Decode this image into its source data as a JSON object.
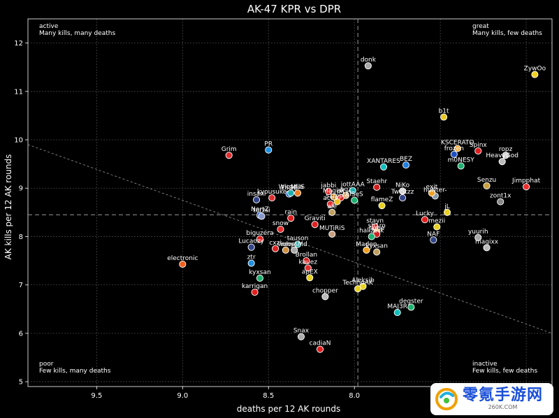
{
  "chart_data": {
    "type": "scatter",
    "title": "AK-47 KPR vs DPR",
    "xlabel": "deaths per 12 AK rounds",
    "ylabel": "AK kills per 12 AK rounds",
    "xlim": [
      9.9,
      6.85
    ],
    "ylim": [
      4.9,
      12.5
    ],
    "x_inverted": true,
    "x_ticks": [
      "9.5",
      "9.0",
      "8.5",
      "8.0",
      "7.5",
      "7.0"
    ],
    "x_tick_values": [
      9.5,
      9.0,
      8.5,
      8.0,
      7.5,
      7.0
    ],
    "y_ticks": [
      "5",
      "6",
      "7",
      "8",
      "9",
      "10",
      "11",
      "12"
    ],
    "y_tick_values": [
      5,
      6,
      7,
      8,
      9,
      10,
      11,
      12
    ],
    "grid": true,
    "mean_x": 7.98,
    "mean_y": 8.45,
    "trend_line": [
      [
        9.9,
        9.9
      ],
      [
        6.85,
        6.0
      ]
    ],
    "quadrants": {
      "top_left": {
        "title": "active",
        "subtitle": "Many kills, many deaths"
      },
      "top_right": {
        "title": "great",
        "subtitle": "Many kills, few deaths"
      },
      "bottom_left": {
        "title": "poor",
        "subtitle": "Few kills, many deaths"
      },
      "bottom_right": {
        "title": "inactive",
        "subtitle": "Few kills, few deaths"
      }
    },
    "points": [
      {
        "label": "donk",
        "x": 7.92,
        "y": 11.53,
        "color": "#aaaaaa"
      },
      {
        "label": "ZywOo",
        "x": 6.95,
        "y": 11.35,
        "color": "#f0d020"
      },
      {
        "label": "b1t",
        "x": 7.48,
        "y": 10.47,
        "color": "#e8c820"
      },
      {
        "label": "Grim",
        "x": 8.73,
        "y": 9.68,
        "color": "#e03030"
      },
      {
        "label": "PR",
        "x": 8.5,
        "y": 9.79,
        "color": "#2090e0"
      },
      {
        "label": "KSCERATO",
        "x": 7.4,
        "y": 9.82,
        "color": "#f0a020"
      },
      {
        "label": "Spinx",
        "x": 7.28,
        "y": 9.77,
        "color": "#e02020"
      },
      {
        "label": "frozen",
        "x": 7.42,
        "y": 9.7,
        "color": "#2050c0"
      },
      {
        "label": "ropz",
        "x": 7.12,
        "y": 9.68,
        "color": "#cccccc"
      },
      {
        "label": "HeavyGod",
        "x": 7.14,
        "y": 9.55,
        "color": "#bbbbbb"
      },
      {
        "label": "m0NESY",
        "x": 7.38,
        "y": 9.46,
        "color": "#20b070"
      },
      {
        "label": "XANTARES",
        "x": 7.83,
        "y": 9.44,
        "color": "#10c0c0"
      },
      {
        "label": "BEZ",
        "x": 7.7,
        "y": 9.48,
        "color": "#2080e0"
      },
      {
        "label": "Senzu",
        "x": 7.23,
        "y": 9.05,
        "color": "#c8a040"
      },
      {
        "label": "Jimpphat",
        "x": 7.0,
        "y": 9.03,
        "color": "#e83030"
      },
      {
        "label": "zont1x",
        "x": 7.15,
        "y": 8.72,
        "color": "#888888"
      },
      {
        "label": "jabbi",
        "x": 8.15,
        "y": 8.93,
        "color": "#e02020"
      },
      {
        "label": "jottAAA",
        "x": 8.01,
        "y": 8.95,
        "color": "#20b0b0"
      },
      {
        "label": "Staehr",
        "x": 7.87,
        "y": 9.02,
        "color": "#d02020"
      },
      {
        "label": "NiKo",
        "x": 7.72,
        "y": 8.94,
        "color": "#cccccc"
      },
      {
        "label": "huNter-",
        "x": 7.53,
        "y": 8.84,
        "color": "#8899aa"
      },
      {
        "label": "exit",
        "x": 7.55,
        "y": 8.9,
        "color": "#f0a020"
      },
      {
        "label": "TwiStzz",
        "x": 7.72,
        "y": 8.8,
        "color": "#334488"
      },
      {
        "label": "EliGE",
        "x": 8.38,
        "y": 8.88,
        "color": "#2060d0"
      },
      {
        "label": "MUS",
        "x": 8.33,
        "y": 8.9,
        "color": "#f08020"
      },
      {
        "label": "Wicadia",
        "x": 8.37,
        "y": 8.9,
        "color": "#20b0b0"
      },
      {
        "label": "Magisk",
        "x": 8.12,
        "y": 8.82,
        "color": "#c08020"
      },
      {
        "label": "nqz",
        "x": 8.05,
        "y": 8.85,
        "color": "#d09040"
      },
      {
        "label": "iM",
        "x": 8.08,
        "y": 8.8,
        "color": "#e02020"
      },
      {
        "label": "s1mple",
        "x": 8.1,
        "y": 8.72,
        "color": "#f0c020"
      },
      {
        "label": "insani",
        "x": 8.57,
        "y": 8.76,
        "color": "#334488"
      },
      {
        "label": "kyousuke",
        "x": 8.48,
        "y": 8.8,
        "color": "#e03030"
      },
      {
        "label": "ElSeS",
        "x": 8.0,
        "y": 8.75,
        "color": "#20b070"
      },
      {
        "label": "flameZ",
        "x": 7.84,
        "y": 8.64,
        "color": "#e8d020"
      },
      {
        "label": "aces",
        "x": 8.14,
        "y": 8.67,
        "color": "#e03030"
      },
      {
        "label": "ale",
        "x": 8.13,
        "y": 8.5,
        "color": "#c0a060"
      },
      {
        "label": "jL",
        "x": 7.46,
        "y": 8.5,
        "color": "#e8d020"
      },
      {
        "label": "NertZ",
        "x": 8.55,
        "y": 8.44,
        "color": "#2060d0"
      },
      {
        "label": "torzsi",
        "x": 8.54,
        "y": 8.42,
        "color": "#8899cc"
      },
      {
        "label": "rain",
        "x": 8.37,
        "y": 8.38,
        "color": "#e02020"
      },
      {
        "label": "Lucky",
        "x": 7.59,
        "y": 8.35,
        "color": "#e02020"
      },
      {
        "label": "snow",
        "x": 8.43,
        "y": 8.15,
        "color": "#e03030"
      },
      {
        "label": "Graviti",
        "x": 8.23,
        "y": 8.25,
        "color": "#e02020"
      },
      {
        "label": "mezii",
        "x": 7.52,
        "y": 8.2,
        "color": "#e8d020"
      },
      {
        "label": "stavn",
        "x": 7.88,
        "y": 8.2,
        "color": "#e02020"
      },
      {
        "label": "sh1ro",
        "x": 7.87,
        "y": 8.1,
        "color": "#f0a020"
      },
      {
        "label": "Jame",
        "x": 7.87,
        "y": 8.05,
        "color": "#d02020"
      },
      {
        "label": "hallzerk",
        "x": 7.9,
        "y": 8.0,
        "color": "#20b070"
      },
      {
        "label": "MUTiRiS",
        "x": 8.13,
        "y": 8.05,
        "color": "#c8a080"
      },
      {
        "label": "yuurih",
        "x": 7.28,
        "y": 7.98,
        "color": "#aaaaaa"
      },
      {
        "label": "biguzera",
        "x": 8.55,
        "y": 7.95,
        "color": "#e02020"
      },
      {
        "label": "NAF",
        "x": 7.54,
        "y": 7.93,
        "color": "#334488"
      },
      {
        "label": "Lucaozy",
        "x": 8.6,
        "y": 7.78,
        "color": "#334488"
      },
      {
        "label": "tauson",
        "x": 8.33,
        "y": 7.84,
        "color": "#20b0b0"
      },
      {
        "label": "cxzi",
        "x": 8.46,
        "y": 7.75,
        "color": "#e02020"
      },
      {
        "label": "siuhy",
        "x": 8.4,
        "y": 7.72,
        "color": "#d09040"
      },
      {
        "label": "mossMd",
        "x": 8.35,
        "y": 7.72,
        "color": "#aaaaaa"
      },
      {
        "label": "magixx",
        "x": 7.23,
        "y": 7.77,
        "color": "#bbbbbb"
      },
      {
        "label": "Maden",
        "x": 7.93,
        "y": 7.72,
        "color": "#f0a020"
      },
      {
        "label": "kyxsan",
        "x": 7.87,
        "y": 7.68,
        "color": "#c0a060"
      },
      {
        "label": "ztr",
        "x": 8.6,
        "y": 7.45,
        "color": "#2090e0"
      },
      {
        "label": "electronic",
        "x": 9.0,
        "y": 7.43,
        "color": "#f06020"
      },
      {
        "label": "Brollan",
        "x": 8.28,
        "y": 7.5,
        "color": "#d02020"
      },
      {
        "label": "kauez",
        "x": 8.27,
        "y": 7.35,
        "color": "#e03030"
      },
      {
        "label": "kyxsan",
        "x": 8.55,
        "y": 7.14,
        "color": "#20b070"
      },
      {
        "label": "apEX",
        "x": 8.26,
        "y": 7.15,
        "color": "#e8d020"
      },
      {
        "label": "karrigan",
        "x": 8.58,
        "y": 6.85,
        "color": "#e02020"
      },
      {
        "label": "Aleksib",
        "x": 7.95,
        "y": 6.97,
        "color": "#e8d020"
      },
      {
        "label": "TechnoAK",
        "x": 7.98,
        "y": 6.92,
        "color": "#e8d020"
      },
      {
        "label": "chopper",
        "x": 8.17,
        "y": 6.76,
        "color": "#bbbbbb"
      },
      {
        "label": "degster",
        "x": 7.67,
        "y": 6.54,
        "color": "#20b070"
      },
      {
        "label": "MAJ3R",
        "x": 7.75,
        "y": 6.43,
        "color": "#10c0c0"
      },
      {
        "label": "Snax",
        "x": 8.31,
        "y": 5.93,
        "color": "#aaaaaa"
      },
      {
        "label": "cadiaN",
        "x": 8.2,
        "y": 5.67,
        "color": "#e02020"
      }
    ]
  },
  "watermark": {
    "text": "零氪手游网",
    "subtext": "260K.COM"
  },
  "colors": {
    "background": "#000000",
    "grid": "#444444",
    "text": "#ffffff",
    "watermark_blue": "#1a4fd8"
  }
}
